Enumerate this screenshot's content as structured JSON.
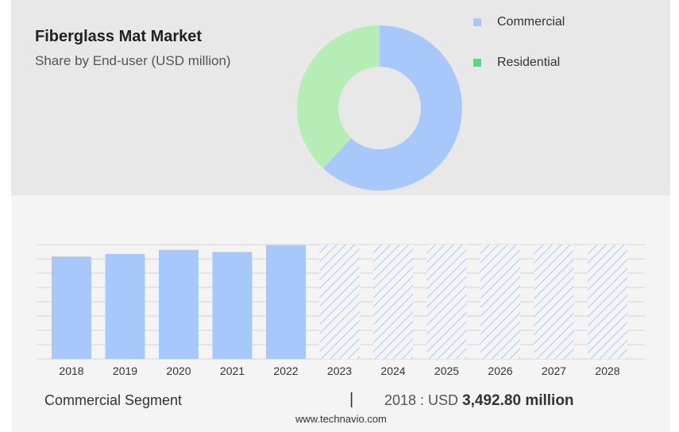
{
  "header": {
    "title": "Fiberglass Mat Market",
    "subtitle": "Share by End-user (USD million)"
  },
  "legend": [
    {
      "label": "Commercial",
      "color": "#a8c8fb"
    },
    {
      "label": "Residential",
      "color": "#5fd47e"
    }
  ],
  "chart_data": [
    {
      "type": "pie",
      "variant": "donut",
      "slices": [
        {
          "label": "Commercial",
          "value": 62,
          "color": "#a8c8fb"
        },
        {
          "label": "Residential",
          "value": 38,
          "color": "#b6ecb6"
        }
      ]
    },
    {
      "type": "bar",
      "categories": [
        "2018",
        "2019",
        "2020",
        "2021",
        "2022",
        "2023",
        "2024",
        "2025",
        "2026",
        "2027",
        "2028"
      ],
      "values": [
        3492.8,
        3580,
        3720,
        3650,
        3880,
        null,
        null,
        null,
        null,
        null,
        null
      ],
      "forecast_categories": [
        "2023",
        "2024",
        "2025",
        "2026",
        "2027",
        "2028"
      ],
      "forecast_style": "hatched",
      "color": "#a8c8fb",
      "ylim": [
        0,
        3900
      ],
      "grid": true
    }
  ],
  "footer": {
    "segment": "Commercial Segment",
    "separator": "|",
    "year_prefix": "2018 : USD",
    "value": "3,492.80 million"
  },
  "source": "www.technavio.com"
}
